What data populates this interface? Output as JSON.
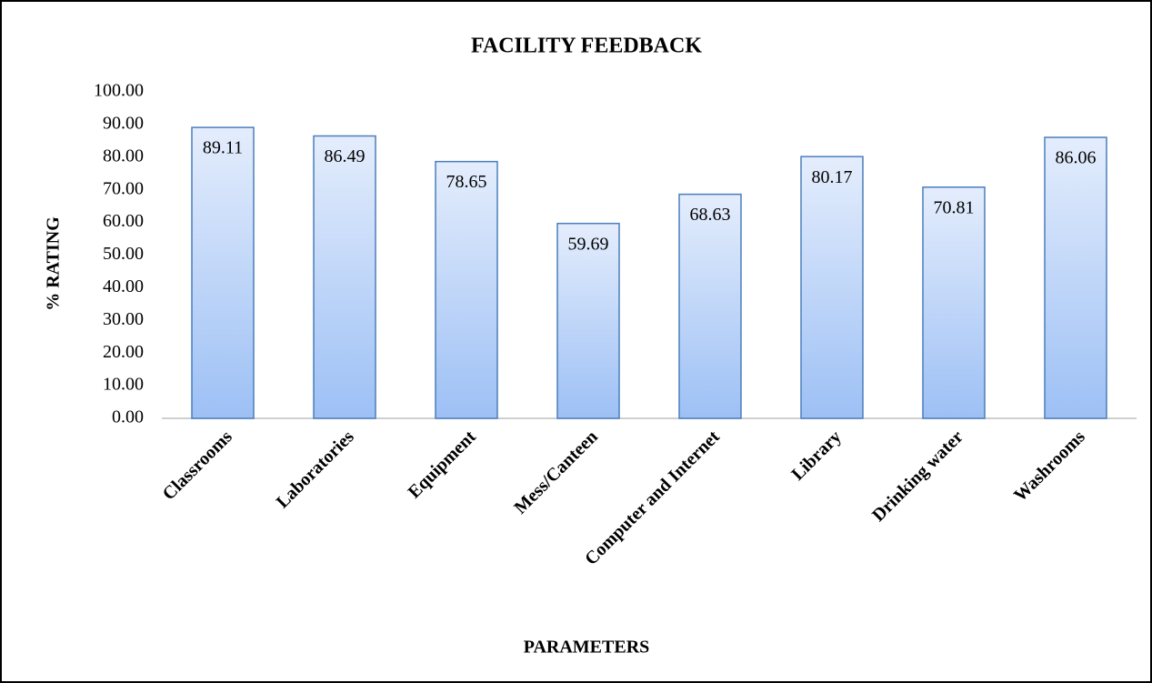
{
  "chart_data": {
    "type": "bar",
    "title": "FACILITY FEEDBACK",
    "x_label": "PARAMETERS",
    "y_label": "% RATING",
    "categories": [
      "Classrooms",
      "Laboratories",
      "Equipment",
      "Mess/Canteen",
      "Computer and Internet",
      "Library",
      "Drinking water",
      "Washrooms"
    ],
    "values": [
      89.11,
      86.49,
      78.65,
      59.69,
      68.63,
      80.17,
      70.81,
      86.06
    ],
    "color": "#9dc0f5",
    "edge_color": "#4a7ebb",
    "ylim": [
      0,
      100
    ],
    "yticks": [
      {
        "value": 0,
        "label": "0.00"
      },
      {
        "value": 10,
        "label": "10.00"
      },
      {
        "value": 20,
        "label": "20.00"
      },
      {
        "value": 30,
        "label": "30.00"
      },
      {
        "value": 40,
        "label": "40.00"
      },
      {
        "value": 50,
        "label": "50.00"
      },
      {
        "value": 60,
        "label": "60.00"
      },
      {
        "value": 70,
        "label": "70.00"
      },
      {
        "value": 80,
        "label": "80.00"
      },
      {
        "value": 90,
        "label": "90.00"
      },
      {
        "value": 100,
        "label": "100.00"
      }
    ],
    "grid": false
  }
}
